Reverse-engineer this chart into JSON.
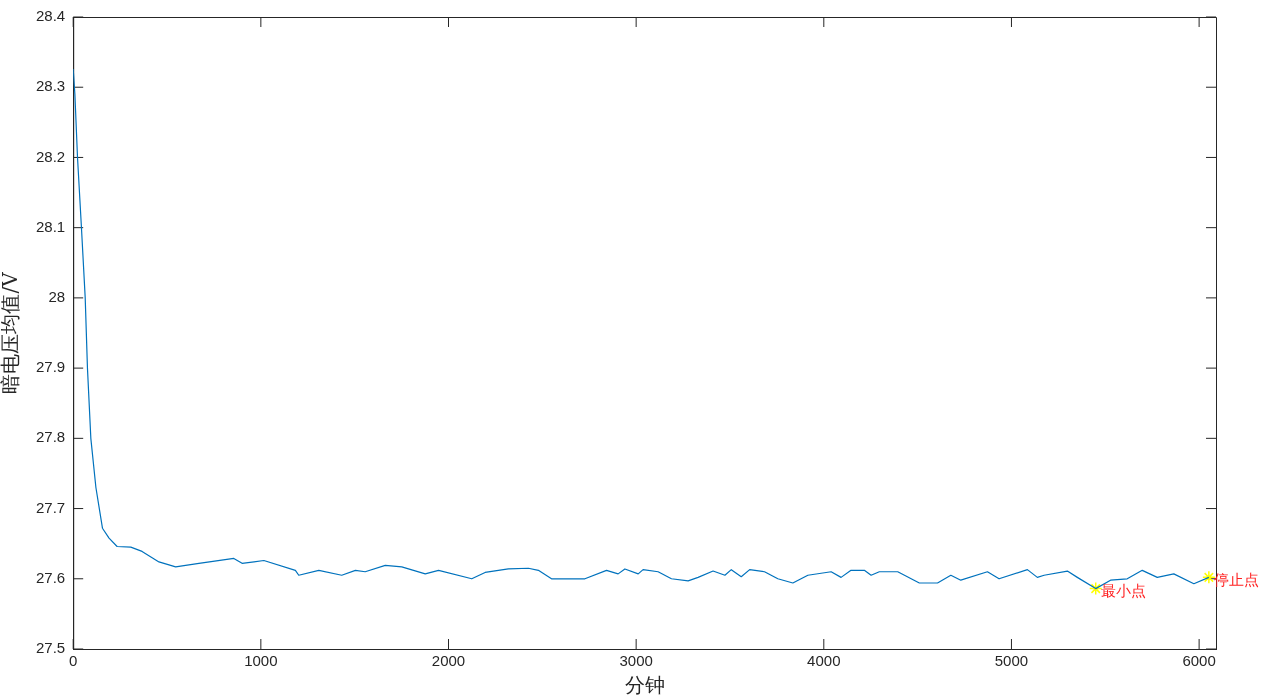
{
  "chart_data": {
    "type": "line",
    "xlabel": "分钟",
    "ylabel": "暗电压均值/V",
    "xlim": [
      0,
      6090
    ],
    "ylim": [
      27.5,
      28.4
    ],
    "xticks": [
      0,
      1000,
      2000,
      3000,
      4000,
      5000,
      6000
    ],
    "yticks": [
      27.5,
      27.6,
      27.7,
      27.8,
      27.9,
      28,
      28.1,
      28.2,
      28.3,
      28.4
    ],
    "grid": false,
    "legend": false,
    "marker": "none",
    "line_style": "solid",
    "series": [
      {
        "color": "#0072bd",
        "x": [
          0,
          9,
          23,
          44,
          64,
          76,
          94,
          121,
          156,
          191,
          234,
          307,
          367,
          457,
          546,
          599,
          670,
          856,
          900,
          1016,
          1184,
          1202,
          1309,
          1431,
          1504,
          1556,
          1663,
          1751,
          1876,
          1947,
          2124,
          2195,
          2319,
          2426,
          2479,
          2549,
          2727,
          2842,
          2904,
          2940,
          3011,
          3037,
          3117,
          3188,
          3277,
          3330,
          3410,
          3473,
          3507,
          3560,
          3605,
          3684,
          3755,
          3835,
          3915,
          4039,
          4092,
          4145,
          4216,
          4252,
          4296,
          4394,
          4509,
          4606,
          4677,
          4730,
          4872,
          4934,
          5085,
          5138,
          5174,
          5298,
          5351,
          5449,
          5528,
          5617,
          5697,
          5777,
          5865,
          5972,
          6052
        ],
        "values": [
          28.326,
          28.29,
          28.2,
          28.1,
          28.0,
          27.9,
          27.8,
          27.73,
          27.672,
          27.658,
          27.646,
          27.645,
          27.639,
          27.624,
          27.617,
          27.619,
          27.622,
          27.629,
          27.622,
          27.626,
          27.612,
          27.605,
          27.612,
          27.605,
          27.612,
          27.61,
          27.619,
          27.617,
          27.607,
          27.612,
          27.6,
          27.609,
          27.614,
          27.615,
          27.612,
          27.6,
          27.6,
          27.612,
          27.607,
          27.614,
          27.607,
          27.613,
          27.61,
          27.6,
          27.597,
          27.602,
          27.611,
          27.605,
          27.613,
          27.603,
          27.613,
          27.61,
          27.6,
          27.594,
          27.605,
          27.61,
          27.602,
          27.612,
          27.612,
          27.605,
          27.61,
          27.61,
          27.594,
          27.594,
          27.605,
          27.598,
          27.61,
          27.6,
          27.613,
          27.602,
          27.605,
          27.611,
          27.602,
          27.586,
          27.598,
          27.6,
          27.612,
          27.602,
          27.607,
          27.593,
          27.602
        ]
      },
      {
        "type": "scatter",
        "color": "#ffff00",
        "marker": "cross",
        "x": [
          5449,
          6052
        ],
        "values": [
          27.586,
          27.602
        ]
      }
    ],
    "annotations": [
      {
        "text": "最小点",
        "x": 5449,
        "y": 27.586
      },
      {
        "text": "停止点",
        "x": 6052,
        "y": 27.602
      }
    ]
  }
}
